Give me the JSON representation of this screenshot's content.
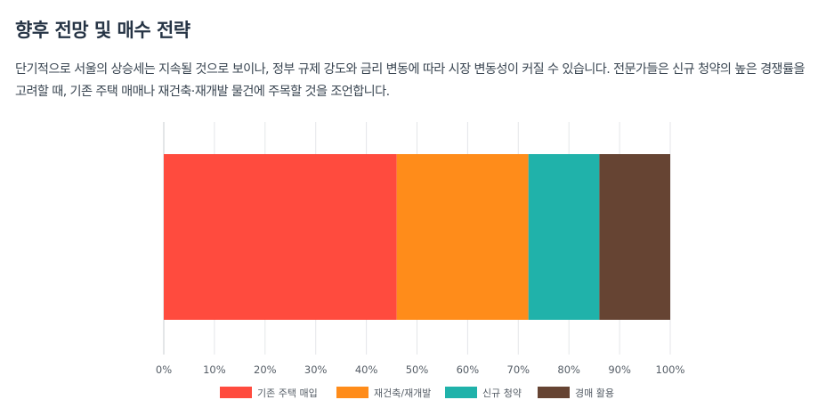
{
  "section": {
    "title": "향후 전망 및 매수 전략",
    "paragraph": "단기적으로 서울의 상승세는 지속될 것으로 보이나, 정부 규제 강도와 금리 변동에 따라 시장 변동성이 커질 수 있습니다. 전문가들은 신규 청약의 높은 경쟁률을 고려할 때, 기존 주택 매매나 재건축·재개발 물건에 주목할 것을 조언합니다."
  },
  "chart_data": {
    "type": "bar",
    "orientation": "horizontal",
    "stacked": true,
    "categories": [
      ""
    ],
    "series": [
      {
        "name": "기존 주택 매입",
        "values": [
          46
        ],
        "color": "#ff4b3e"
      },
      {
        "name": "재건축/재개발",
        "values": [
          26
        ],
        "color": "#ff8c1a"
      },
      {
        "name": "신규 청약",
        "values": [
          14
        ],
        "color": "#20b2aa"
      },
      {
        "name": "경매 활용",
        "values": [
          14
        ],
        "color": "#664433"
      }
    ],
    "xlim": [
      0,
      100
    ],
    "xticks": [
      "0%",
      "10%",
      "20%",
      "30%",
      "40%",
      "50%",
      "60%",
      "70%",
      "80%",
      "90%",
      "100%"
    ],
    "title": "",
    "xlabel": "",
    "ylabel": "",
    "grid": true,
    "legend": "bottom"
  }
}
